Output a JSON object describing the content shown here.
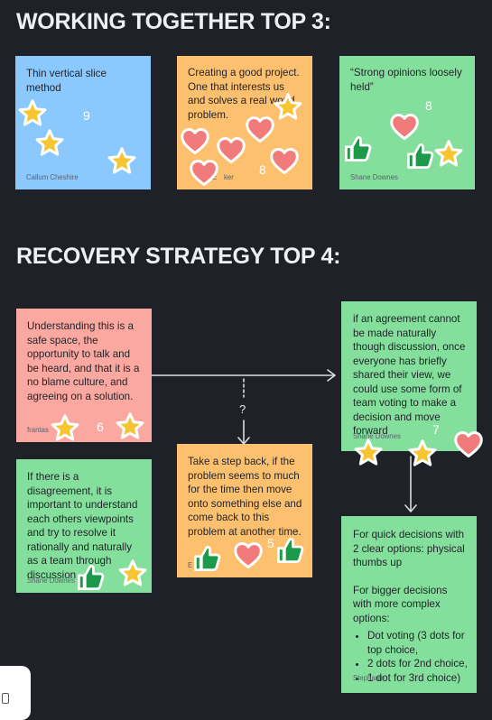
{
  "sections": {
    "working_title": "WORKING TOGETHER TOP 3:",
    "recovery_title": "RECOVERY STRATEGY TOP 4:"
  },
  "working": [
    {
      "text": "Thin vertical slice method",
      "author": "Callum Cheshire",
      "count": "9",
      "color": "#8bc8fd"
    },
    {
      "text": "Creating a good project. One that interests us and solves a real world problem.",
      "author": "E",
      "author_tail": "ker",
      "count": "8",
      "color": "#fcc06e"
    },
    {
      "text": "“Strong opinions loosely held”",
      "author": "Shane Downes",
      "count": "8",
      "color": "#84df9c"
    }
  ],
  "recovery": {
    "r1": {
      "text": "Understanding this is a safe space, the opportunity to talk and be heard, and that it is a no blame culture, and agreeing on a solution.",
      "author": "frantas",
      "count": "6"
    },
    "r2": {
      "text": "If there is a disagreement, it is important to understand each others viewpoints and try to resolve it rationally and naturally as a team through discussion",
      "author": "Shane Downes"
    },
    "r3": {
      "text": "Take a step back, if the problem seems to much for the time then move onto something else and come back to this problem at another time.",
      "author": "E",
      "author_tail": "ker",
      "count": "5"
    },
    "r4": {
      "text": "if an agreement cannot be made naturally though discussion, once everyone has briefly shared their view, we could use some form of team voting to make a decision and move forward",
      "author": "Shane Downes",
      "count": "7"
    },
    "r5": {
      "intro": "For quick decisions with 2 clear options: physical thumbs up",
      "sub": "For bigger decisions with more complex options:",
      "bullets": [
        "Dot voting (3 dots for top choice,",
        "2 dots for 2nd choice,",
        "1 dot for 3rd choice)"
      ],
      "author": "Stephanie"
    },
    "question_mark": "?"
  },
  "icons": [
    "star-icon",
    "heart-icon",
    "thumbs-up-icon",
    "arrow-icon"
  ],
  "colors": {
    "background": "#1e2128",
    "blue": "#8bc8fd",
    "orange": "#fcc06e",
    "green": "#84df9c",
    "pink": "#fba8a0",
    "star": "#f7c531",
    "heart": "#f17b7b",
    "thumb": "#1c9a4a"
  }
}
